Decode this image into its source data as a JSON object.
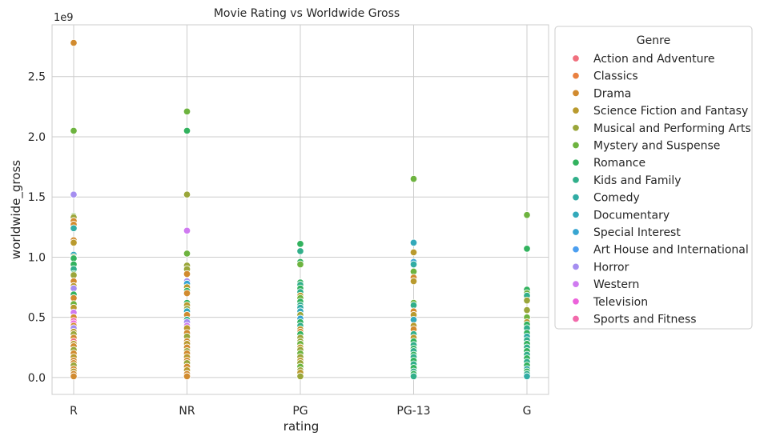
{
  "chart_data": {
    "type": "scatter",
    "title": "Movie Rating vs Worldwide Gross",
    "xlabel": "rating",
    "ylabel": "worldwide_gross",
    "offset_label": "1e9",
    "categories": [
      "R",
      "NR",
      "PG",
      "PG-13",
      "G"
    ],
    "y_ticks": [
      0.0,
      0.5,
      1.0,
      1.5,
      2.0,
      2.5
    ],
    "y_tick_labels": [
      "0.0",
      "0.5",
      "1.0",
      "1.5",
      "2.0",
      "2.5"
    ],
    "ylim": [
      -0.14,
      2.93
    ],
    "grid": true,
    "legend_title": "Genre",
    "legend_position": "outside-right",
    "genres": [
      {
        "name": "Action and Adventure",
        "color": "#f0707e"
      },
      {
        "name": "Classics",
        "color": "#e98040"
      },
      {
        "name": "Drama",
        "color": "#d18b2f"
      },
      {
        "name": "Science Fiction and Fantasy",
        "color": "#b99a2e"
      },
      {
        "name": "Musical and Performing Arts",
        "color": "#9aa63a"
      },
      {
        "name": "Mystery and Suspense",
        "color": "#6db33f"
      },
      {
        "name": "Romance",
        "color": "#32b25e"
      },
      {
        "name": "Kids and Family",
        "color": "#31af8a"
      },
      {
        "name": "Comedy",
        "color": "#31aca4"
      },
      {
        "name": "Documentary",
        "color": "#33a9ba"
      },
      {
        "name": "Special Interest",
        "color": "#38a5d1"
      },
      {
        "name": "Art House and International",
        "color": "#4c9ff0"
      },
      {
        "name": "Horror",
        "color": "#a58ef0"
      },
      {
        "name": "Western",
        "color": "#cf7af0"
      },
      {
        "name": "Television",
        "color": "#ec62db"
      },
      {
        "name": "Sports and Fitness",
        "color": "#f26aab"
      }
    ],
    "points_by_rating": {
      "R": [
        [
          2.78,
          2
        ],
        [
          2.05,
          5
        ],
        [
          1.52,
          12
        ],
        [
          1.34,
          5
        ],
        [
          1.33,
          4
        ],
        [
          1.3,
          2
        ],
        [
          1.27,
          2
        ],
        [
          1.24,
          8
        ],
        [
          1.14,
          2
        ],
        [
          1.12,
          3
        ],
        [
          1.02,
          9
        ],
        [
          1.0,
          4
        ],
        [
          0.99,
          6
        ],
        [
          0.94,
          6
        ],
        [
          0.9,
          7
        ],
        [
          0.86,
          6
        ],
        [
          0.85,
          4
        ],
        [
          0.8,
          2
        ],
        [
          0.76,
          3
        ],
        [
          0.74,
          12
        ],
        [
          0.69,
          6
        ],
        [
          0.66,
          2
        ],
        [
          0.61,
          5
        ],
        [
          0.58,
          3
        ],
        [
          0.54,
          13
        ],
        [
          0.5,
          2
        ],
        [
          0.47,
          15
        ],
        [
          0.45,
          14
        ],
        [
          0.43,
          2
        ],
        [
          0.41,
          12
        ],
        [
          0.38,
          3
        ],
        [
          0.36,
          4
        ],
        [
          0.33,
          2
        ],
        [
          0.3,
          0
        ],
        [
          0.28,
          3
        ],
        [
          0.26,
          2
        ],
        [
          0.23,
          4
        ],
        [
          0.2,
          2
        ],
        [
          0.17,
          3
        ],
        [
          0.14,
          2
        ],
        [
          0.12,
          2
        ],
        [
          0.1,
          4
        ],
        [
          0.07,
          2
        ],
        [
          0.05,
          3
        ],
        [
          0.03,
          2
        ],
        [
          0.01,
          2
        ]
      ],
      "NR": [
        [
          2.21,
          5
        ],
        [
          2.05,
          6
        ],
        [
          1.52,
          4
        ],
        [
          1.22,
          13
        ],
        [
          1.03,
          5
        ],
        [
          0.93,
          4
        ],
        [
          0.9,
          4
        ],
        [
          0.86,
          2
        ],
        [
          0.8,
          12
        ],
        [
          0.78,
          10
        ],
        [
          0.75,
          3
        ],
        [
          0.72,
          6
        ],
        [
          0.7,
          2
        ],
        [
          0.62,
          6
        ],
        [
          0.6,
          3
        ],
        [
          0.57,
          4
        ],
        [
          0.55,
          9
        ],
        [
          0.52,
          2
        ],
        [
          0.48,
          7
        ],
        [
          0.46,
          12
        ],
        [
          0.43,
          13
        ],
        [
          0.41,
          3
        ],
        [
          0.37,
          2
        ],
        [
          0.34,
          4
        ],
        [
          0.3,
          2
        ],
        [
          0.28,
          3
        ],
        [
          0.25,
          2
        ],
        [
          0.22,
          4
        ],
        [
          0.2,
          2
        ],
        [
          0.17,
          3
        ],
        [
          0.14,
          2
        ],
        [
          0.12,
          4
        ],
        [
          0.09,
          2
        ],
        [
          0.06,
          3
        ],
        [
          0.03,
          2
        ],
        [
          0.01,
          2
        ]
      ],
      "PG": [
        [
          1.11,
          6
        ],
        [
          1.05,
          7
        ],
        [
          0.96,
          6
        ],
        [
          0.94,
          5
        ],
        [
          0.79,
          6
        ],
        [
          0.77,
          7
        ],
        [
          0.74,
          6
        ],
        [
          0.71,
          7
        ],
        [
          0.68,
          3
        ],
        [
          0.66,
          5
        ],
        [
          0.63,
          6
        ],
        [
          0.6,
          7
        ],
        [
          0.58,
          8
        ],
        [
          0.55,
          9
        ],
        [
          0.52,
          4
        ],
        [
          0.49,
          10
        ],
        [
          0.46,
          6
        ],
        [
          0.43,
          7
        ],
        [
          0.4,
          3
        ],
        [
          0.38,
          2
        ],
        [
          0.36,
          6
        ],
        [
          0.33,
          4
        ],
        [
          0.3,
          4
        ],
        [
          0.28,
          5
        ],
        [
          0.25,
          3
        ],
        [
          0.23,
          4
        ],
        [
          0.2,
          5
        ],
        [
          0.17,
          4
        ],
        [
          0.14,
          3
        ],
        [
          0.12,
          4
        ],
        [
          0.09,
          5
        ],
        [
          0.06,
          4
        ],
        [
          0.04,
          3
        ],
        [
          0.01,
          4
        ]
      ],
      "PG-13": [
        [
          1.65,
          5
        ],
        [
          1.12,
          9
        ],
        [
          1.04,
          3
        ],
        [
          0.96,
          10
        ],
        [
          0.94,
          8
        ],
        [
          0.88,
          5
        ],
        [
          0.83,
          2
        ],
        [
          0.8,
          3
        ],
        [
          0.62,
          5
        ],
        [
          0.6,
          7
        ],
        [
          0.55,
          2
        ],
        [
          0.52,
          3
        ],
        [
          0.48,
          9
        ],
        [
          0.43,
          3
        ],
        [
          0.4,
          2
        ],
        [
          0.36,
          7
        ],
        [
          0.33,
          3
        ],
        [
          0.3,
          6
        ],
        [
          0.27,
          7
        ],
        [
          0.24,
          6
        ],
        [
          0.22,
          7
        ],
        [
          0.19,
          6
        ],
        [
          0.17,
          7
        ],
        [
          0.14,
          6
        ],
        [
          0.11,
          7
        ],
        [
          0.08,
          6
        ],
        [
          0.05,
          7
        ],
        [
          0.03,
          6
        ],
        [
          0.01,
          7
        ]
      ],
      "G": [
        [
          1.35,
          5
        ],
        [
          1.07,
          6
        ],
        [
          0.73,
          6
        ],
        [
          0.7,
          5
        ],
        [
          0.68,
          7
        ],
        [
          0.64,
          4
        ],
        [
          0.56,
          4
        ],
        [
          0.5,
          5
        ],
        [
          0.46,
          3
        ],
        [
          0.44,
          6
        ],
        [
          0.41,
          7
        ],
        [
          0.37,
          6
        ],
        [
          0.34,
          8
        ],
        [
          0.31,
          7
        ],
        [
          0.28,
          6
        ],
        [
          0.25,
          7
        ],
        [
          0.22,
          6
        ],
        [
          0.19,
          7
        ],
        [
          0.16,
          6
        ],
        [
          0.13,
          7
        ],
        [
          0.1,
          6
        ],
        [
          0.07,
          8
        ],
        [
          0.05,
          6
        ],
        [
          0.03,
          7
        ],
        [
          0.01,
          8
        ]
      ]
    }
  }
}
